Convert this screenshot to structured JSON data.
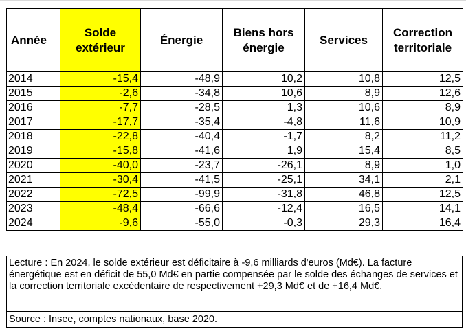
{
  "table": {
    "headers": [
      [
        "Année"
      ],
      [
        "Solde",
        "extérieur"
      ],
      [
        "Énergie"
      ],
      [
        "Biens hors",
        "énergie"
      ],
      [
        "Services"
      ],
      [
        "Correction",
        "territoriale"
      ]
    ],
    "rows": [
      [
        "2014",
        "-15,4",
        "-48,9",
        "10,2",
        "10,8",
        "12,5"
      ],
      [
        "2015",
        "-2,6",
        "-34,8",
        "10,6",
        "8,9",
        "12,6"
      ],
      [
        "2016",
        "-7,7",
        "-28,5",
        "1,3",
        "10,6",
        "8,9"
      ],
      [
        "2017",
        "-17,7",
        "-35,4",
        "-4,8",
        "11,6",
        "10,9"
      ],
      [
        "2018",
        "-22,8",
        "-40,4",
        "-1,7",
        "8,2",
        "11,2"
      ],
      [
        "2019",
        "-15,8",
        "-41,6",
        "1,9",
        "15,4",
        "8,5"
      ],
      [
        "2020",
        "-40,0",
        "-23,7",
        "-26,1",
        "8,9",
        "1,0"
      ],
      [
        "2021",
        "-30,4",
        "-41,5",
        "-25,1",
        "34,1",
        "2,1"
      ],
      [
        "2022",
        "-72,5",
        "-99,9",
        "-31,8",
        "46,8",
        "12,5"
      ],
      [
        "2023",
        "-48,4",
        "-66,6",
        "-12,4",
        "16,5",
        "14,1"
      ],
      [
        "2024",
        "-9,6",
        "-55,0",
        "-0,3",
        "29,3",
        "16,4"
      ]
    ]
  },
  "notes": {
    "lecture": "Lecture : En 2024, le solde extérieur est déficitaire à -9,6 milliards d'euros (Md€). La facture énergétique est en déficit de 55,0 Md€ en partie compensée par le solde des échanges de services et la correction territoriale excédentaire de respectivement +29,3 Md€ et de +16,4 Md€.",
    "source": "Source : Insee, comptes nationaux, base 2020."
  },
  "colors": {
    "highlight": "#ffff00",
    "border": "#000000"
  }
}
